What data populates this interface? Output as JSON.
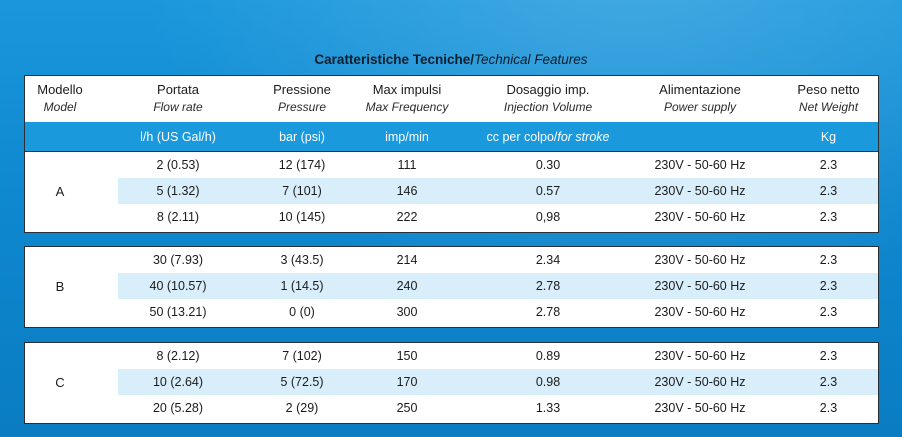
{
  "title": {
    "bold": "Caratteristiche Tecniche/",
    "italic": "Technical Features"
  },
  "headers": [
    {
      "it": "Modello",
      "en": "Model"
    },
    {
      "it": "Portata",
      "en": "Flow rate"
    },
    {
      "it": "Pressione",
      "en": "Pressure"
    },
    {
      "it": "Max impulsi",
      "en": "Max Frequency"
    },
    {
      "it": "Dosaggio imp.",
      "en": "Injection Volume"
    },
    {
      "it": "Alimentazione",
      "en": "Power supply"
    },
    {
      "it": "Peso netto",
      "en": "Net Weight"
    }
  ],
  "units": {
    "flow": "l/h (US Gal/h)",
    "pressure": "bar (psi)",
    "frequency": "imp/min",
    "volume_it": "cc per colpo/",
    "volume_en": "for stroke",
    "power": "",
    "weight": "Kg"
  },
  "groups": [
    {
      "model": "A",
      "rows": [
        {
          "flow": "2 (0.53)",
          "pressure": "12 (174)",
          "freq": "111",
          "volume": "0.30",
          "power": "230V - 50-60 Hz",
          "weight": "2.3"
        },
        {
          "flow": "5 (1.32)",
          "pressure": "7 (101)",
          "freq": "146",
          "volume": "0.57",
          "power": "230V - 50-60 Hz",
          "weight": "2.3"
        },
        {
          "flow": "8 (2.11)",
          "pressure": "10 (145)",
          "freq": "222",
          "volume": "0,98",
          "power": "230V - 50-60 Hz",
          "weight": "2.3"
        }
      ]
    },
    {
      "model": "B",
      "rows": [
        {
          "flow": "30 (7.93)",
          "pressure": "3 (43.5)",
          "freq": "214",
          "volume": "2.34",
          "power": "230V - 50-60 Hz",
          "weight": "2.3"
        },
        {
          "flow": "40 (10.57)",
          "pressure": "1 (14.5)",
          "freq": "240",
          "volume": "2.78",
          "power": "230V - 50-60 Hz",
          "weight": "2.3"
        },
        {
          "flow": "50 (13.21)",
          "pressure": "0 (0)",
          "freq": "300",
          "volume": "2.78",
          "power": "230V - 50-60 Hz",
          "weight": "2.3"
        }
      ]
    },
    {
      "model": "C",
      "rows": [
        {
          "flow": "8 (2.12)",
          "pressure": "7 (102)",
          "freq": "150",
          "volume": "0.89",
          "power": "230V - 50-60 Hz",
          "weight": "2.3"
        },
        {
          "flow": "10 (2.64)",
          "pressure": "5 (72.5)",
          "freq": "170",
          "volume": "0.98",
          "power": "230V - 50-60 Hz",
          "weight": "2.3"
        },
        {
          "flow": "20 (5.28)",
          "pressure": "2 (29)",
          "freq": "250",
          "volume": "1.33",
          "power": "230V - 50-60 Hz",
          "weight": "2.3"
        }
      ]
    }
  ]
}
